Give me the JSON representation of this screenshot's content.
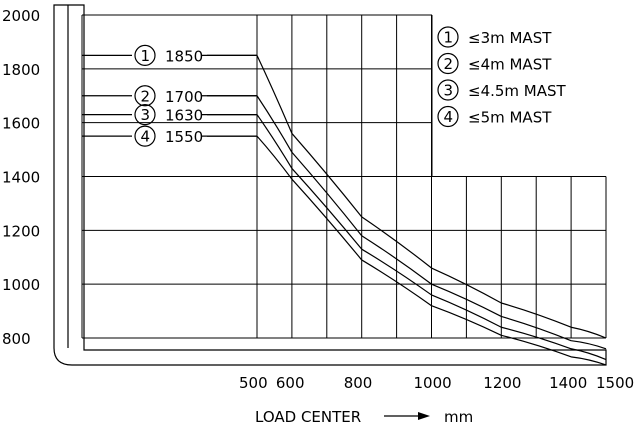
{
  "chart_data": {
    "type": "line",
    "xlabel": "LOAD CENTER",
    "xunit": "mm",
    "ylabel": "",
    "x_ticks": [
      500,
      600,
      800,
      1000,
      1200,
      1400,
      1500
    ],
    "y_ticks": [
      800,
      1000,
      1200,
      1400,
      1600,
      1800,
      2000
    ],
    "xlim": [
      0,
      1500
    ],
    "ylim": [
      800,
      2000
    ],
    "grid": true,
    "legend": "top-right",
    "series": [
      {
        "marker": "1",
        "name": "≤3m MAST",
        "capacity_label": "1850",
        "plateau": 1850,
        "x": [
          500,
          600,
          800,
          1000,
          1200,
          1400,
          1500
        ],
        "y": [
          1850,
          1560,
          1250,
          1060,
          930,
          840,
          800
        ]
      },
      {
        "marker": "2",
        "name": "≤4m MAST",
        "capacity_label": "1700",
        "plateau": 1700,
        "x": [
          500,
          600,
          800,
          1000,
          1200,
          1400,
          1500
        ],
        "y": [
          1700,
          1490,
          1180,
          1000,
          880,
          790,
          760
        ]
      },
      {
        "marker": "3",
        "name": "≤4.5m MAST",
        "capacity_label": "1630",
        "plateau": 1630,
        "x": [
          500,
          600,
          800,
          1000,
          1200,
          1400,
          1500
        ],
        "y": [
          1630,
          1430,
          1130,
          960,
          840,
          760,
          720
        ]
      },
      {
        "marker": "4",
        "name": "≤5m MAST",
        "capacity_label": "1550",
        "plateau": 1550,
        "x": [
          500,
          600,
          800,
          1000,
          1200,
          1400,
          1500
        ],
        "y": [
          1550,
          1390,
          1090,
          920,
          810,
          730,
          700
        ]
      }
    ]
  }
}
